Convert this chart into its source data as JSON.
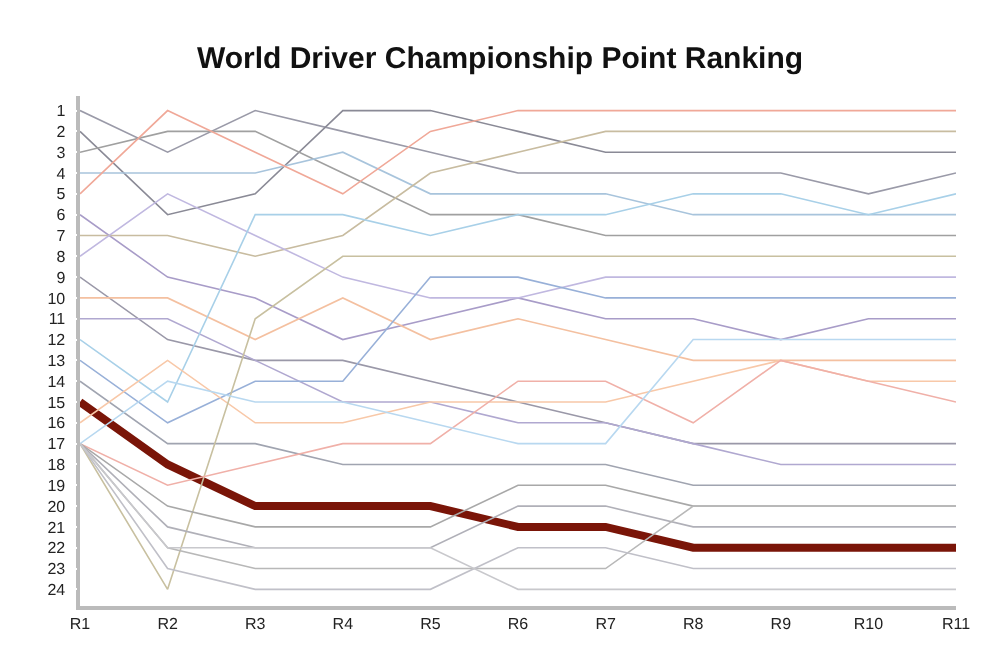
{
  "chart_data": {
    "type": "line",
    "title": "World Driver Championship Point Ranking",
    "categories": [
      "R1",
      "R2",
      "R3",
      "R4",
      "R5",
      "R6",
      "R7",
      "R8",
      "R9",
      "R10",
      "R11"
    ],
    "ylim": [
      24.8,
      0.3
    ],
    "yticks": [
      1,
      2,
      3,
      4,
      5,
      6,
      7,
      8,
      9,
      10,
      11,
      12,
      13,
      14,
      15,
      16,
      17,
      18,
      19,
      20,
      21,
      22,
      23,
      24
    ],
    "marker": "none",
    "line_style": "solid",
    "series": [
      {
        "color": "#9a9aa8",
        "values": [
          1,
          3,
          1,
          2,
          3,
          4,
          4,
          4,
          4,
          5,
          4
        ]
      },
      {
        "color": "#8a8a96",
        "values": [
          2,
          6,
          5,
          1,
          1,
          2,
          3,
          3,
          3,
          3,
          3
        ]
      },
      {
        "color": "#a0a0a0",
        "values": [
          3,
          2,
          2,
          4,
          6,
          6,
          7,
          7,
          7,
          7,
          7
        ]
      },
      {
        "color": "#a8c4dc",
        "values": [
          4,
          4,
          4,
          3,
          5,
          5,
          5,
          6,
          6,
          6,
          6
        ]
      },
      {
        "color": "#f0a898",
        "values": [
          5,
          1,
          3,
          5,
          2,
          1,
          1,
          1,
          1,
          1,
          1
        ]
      },
      {
        "color": "#a89cc8",
        "values": [
          6,
          9,
          10,
          12,
          11,
          10,
          11,
          11,
          12,
          11,
          11
        ]
      },
      {
        "color": "#c8bca0",
        "values": [
          7,
          7,
          8,
          7,
          4,
          3,
          2,
          2,
          2,
          2,
          2
        ]
      },
      {
        "color": "#c0b8e0",
        "values": [
          8,
          5,
          7,
          9,
          10,
          10,
          9,
          9,
          9,
          9,
          9
        ]
      },
      {
        "color": "#9a98a8",
        "values": [
          9,
          12,
          13,
          13,
          14,
          15,
          16,
          17,
          17,
          17,
          17
        ]
      },
      {
        "color": "#f4c0a0",
        "values": [
          10,
          10,
          12,
          10,
          12,
          11,
          12,
          13,
          13,
          13,
          13
        ]
      },
      {
        "color": "#b0a8d0",
        "values": [
          11,
          11,
          13,
          15,
          15,
          16,
          16,
          17,
          18,
          18,
          18
        ]
      },
      {
        "color": "#a8d0e8",
        "values": [
          12,
          15,
          6,
          6,
          7,
          6,
          6,
          5,
          5,
          6,
          5
        ]
      },
      {
        "color": "#98b0d8",
        "values": [
          13,
          16,
          14,
          14,
          9,
          9,
          10,
          10,
          10,
          10,
          10
        ]
      },
      {
        "color": "#a0a4b0",
        "values": [
          14,
          17,
          17,
          18,
          18,
          18,
          18,
          19,
          19,
          19,
          19
        ]
      },
      {
        "color": "#7a1508",
        "values": [
          15,
          18,
          20,
          20,
          20,
          21,
          21,
          22,
          22,
          22,
          22
        ]
      },
      {
        "color": "#f8c8a8",
        "values": [
          16,
          13,
          16,
          16,
          15,
          15,
          15,
          14,
          13,
          14,
          14
        ]
      },
      {
        "color": "#c8c0a0",
        "values": [
          17,
          24,
          11,
          8,
          8,
          8,
          8,
          8,
          8,
          8,
          8
        ]
      },
      {
        "color": "#f0b0a8",
        "values": [
          17,
          19,
          18,
          17,
          17,
          14,
          14,
          16,
          13,
          14,
          15
        ]
      },
      {
        "color": "#a8a8a8",
        "values": [
          17,
          20,
          21,
          21,
          21,
          19,
          19,
          20,
          20,
          20,
          20
        ]
      },
      {
        "color": "#b0b0b8",
        "values": [
          17,
          21,
          22,
          22,
          22,
          20,
          20,
          21,
          21,
          21,
          21
        ]
      },
      {
        "color": "#b8b8b8",
        "values": [
          17,
          22,
          23,
          23,
          23,
          23,
          23,
          20,
          20,
          20,
          20
        ]
      },
      {
        "color": "#c0c0c8",
        "values": [
          17,
          23,
          24,
          24,
          24,
          22,
          22,
          23,
          23,
          23,
          23
        ]
      },
      {
        "color": "#b8d8f0",
        "values": [
          17,
          14,
          15,
          15,
          16,
          17,
          17,
          12,
          12,
          12,
          12
        ]
      },
      {
        "color": "#c8c8cc",
        "values": [
          17,
          22,
          22,
          22,
          22,
          24,
          24,
          24,
          24,
          24,
          24
        ]
      }
    ]
  }
}
